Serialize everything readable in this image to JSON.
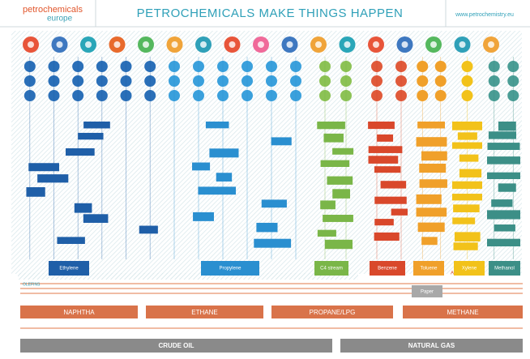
{
  "header": {
    "logo_top": "petrochemicals",
    "logo_bottom": "europe",
    "title": "PETROCHEMICALS MAKE THINGS HAPPEN",
    "url": "www.petrochemistry.eu"
  },
  "hubs": [
    {
      "label": "Ethylene"
    },
    {
      "label": "Propylene"
    },
    {
      "label": "C4 stream"
    },
    {
      "label": "Benzene"
    },
    {
      "label": "Toluene"
    },
    {
      "label": "Xylene"
    },
    {
      "label": "Methanol"
    }
  ],
  "groups": {
    "olefins": "OLEFINS",
    "aromatics": "AROMATICS"
  },
  "paper": "Paper",
  "feedstocks": [
    "NAPHTHA",
    "ETHANE",
    "PROPANE/LPG",
    "METHANE"
  ],
  "sources": [
    "CRUDE OIL",
    "NATURAL GAS"
  ]
}
